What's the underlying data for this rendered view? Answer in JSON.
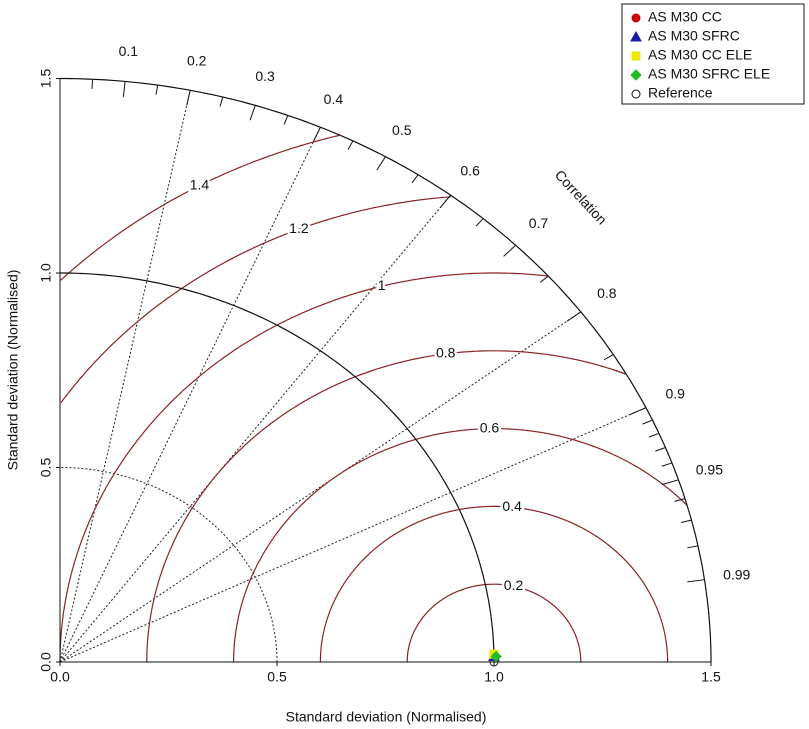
{
  "chart_data": {
    "type": "taylor",
    "x_label": "Standard deviation (Normalised)",
    "y_label": "Standard deviation (Normalised)",
    "corr_label": "Correlation",
    "xlim": [
      0,
      1.5
    ],
    "ylim": [
      0,
      1.5
    ],
    "xticks": [
      {
        "value": 0,
        "label": "0.0"
      },
      0.5,
      {
        "value": 1,
        "label": "1.0"
      },
      1.5
    ],
    "yticks": [
      {
        "value": 0,
        "label": "0.0"
      },
      0.5,
      {
        "value": 1,
        "label": "1.0"
      },
      1.5
    ],
    "corr_ticks": [
      0.1,
      0.2,
      0.3,
      0.4,
      0.5,
      0.6,
      0.7,
      0.8,
      0.9,
      0.95,
      0.99
    ],
    "corr_minor_ticks": [
      0.05,
      0.15,
      0.25,
      0.35,
      0.45,
      0.55,
      0.65,
      0.75,
      0.85,
      0.91,
      0.92,
      0.93,
      0.94,
      0.96,
      0.97,
      0.98
    ],
    "corr_lines": [
      0.2,
      0.4,
      0.6,
      0.8,
      0.9
    ],
    "sd_dotted": [
      0.5
    ],
    "rms_contours": [
      0.2,
      0.4,
      0.6,
      0.8,
      1,
      1.2,
      1.4
    ],
    "rms_color": "#8b2323",
    "reference": {
      "name": "Reference",
      "sd": 1,
      "corr": 1
    },
    "series": [
      {
        "name": "AS M30 CC",
        "color": "#cc0000",
        "marker": "circle",
        "sd": 1.0,
        "corr": 0.9999
      },
      {
        "name": "AS M30 SFRC",
        "color": "#1a1aa6",
        "marker": "triangle",
        "sd": 1.0,
        "corr": 0.9999
      },
      {
        "name": "AS M30 CC ELE",
        "color": "#f2e600",
        "marker": "square",
        "sd": 1.0,
        "corr": 0.9998
      },
      {
        "name": "AS M30 SFRC ELE",
        "color": "#22bb22",
        "marker": "diamond",
        "sd": 1.005,
        "corr": 0.9999
      }
    ],
    "legend": "upper right"
  }
}
